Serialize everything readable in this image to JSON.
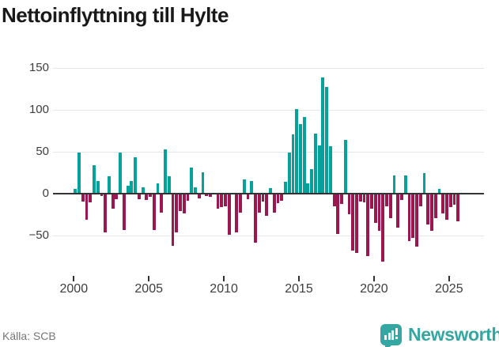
{
  "title": "Nettoinflyttning till Hylte",
  "footer": {
    "source": "Källa: SCB",
    "brand": "Newsworthy"
  },
  "colors": {
    "positive": "#04a29a",
    "negative": "#9a1750",
    "brand": "#35a7a2",
    "grid": "#e6e6e6",
    "axis": "#333333",
    "tick_text": "#3d3d3d",
    "title_text": "#191919",
    "source_text": "#757575"
  },
  "chart_data": {
    "type": "bar",
    "title": "Nettoinflyttning till Hylte",
    "source": "Källa: SCB",
    "xlabel": "",
    "ylabel": "",
    "ylim": [
      -85,
      155
    ],
    "grid": true,
    "legend": "none",
    "y_ticks": [
      {
        "value": 150,
        "label": "150"
      },
      {
        "value": 100,
        "label": "100"
      },
      {
        "value": 50,
        "label": "50"
      },
      {
        "value": 0,
        "label": "0"
      },
      {
        "value": -50,
        "label": "−50"
      }
    ],
    "x_ticks": [
      {
        "year": 2000,
        "label": "2000"
      },
      {
        "year": 2005,
        "label": "2005"
      },
      {
        "year": 2010,
        "label": "2010"
      },
      {
        "year": 2015,
        "label": "2015"
      },
      {
        "year": 2020,
        "label": "2020"
      },
      {
        "year": 2025,
        "label": "2025"
      }
    ],
    "categories": [
      "2000Q1",
      "2000Q2",
      "2000Q3",
      "2000Q4",
      "2001Q1",
      "2001Q2",
      "2001Q3",
      "2001Q4",
      "2002Q1",
      "2002Q2",
      "2002Q3",
      "2002Q4",
      "2003Q1",
      "2003Q2",
      "2003Q3",
      "2003Q4",
      "2004Q1",
      "2004Q2",
      "2004Q3",
      "2004Q4",
      "2005Q1",
      "2005Q2",
      "2005Q3",
      "2005Q4",
      "2006Q1",
      "2006Q2",
      "2006Q3",
      "2006Q4",
      "2007Q1",
      "2007Q2",
      "2007Q3",
      "2007Q4",
      "2008Q1",
      "2008Q2",
      "2008Q3",
      "2008Q4",
      "2009Q1",
      "2009Q2",
      "2009Q3",
      "2009Q4",
      "2010Q1",
      "2010Q2",
      "2010Q3",
      "2010Q4",
      "2011Q1",
      "2011Q2",
      "2011Q3",
      "2011Q4",
      "2012Q1",
      "2012Q2",
      "2012Q3",
      "2012Q4",
      "2013Q1",
      "2013Q2",
      "2013Q3",
      "2013Q4",
      "2014Q1",
      "2014Q2",
      "2014Q3",
      "2014Q4",
      "2015Q1",
      "2015Q2",
      "2015Q3",
      "2015Q4",
      "2016Q1",
      "2016Q2",
      "2016Q3",
      "2016Q4",
      "2017Q1",
      "2017Q2",
      "2017Q3",
      "2017Q4",
      "2018Q1",
      "2018Q2",
      "2018Q3",
      "2018Q4",
      "2019Q1",
      "2019Q2",
      "2019Q3",
      "2019Q4",
      "2020Q1",
      "2020Q2",
      "2020Q3",
      "2020Q4",
      "2021Q1",
      "2021Q2",
      "2021Q3",
      "2021Q4",
      "2022Q1",
      "2022Q2",
      "2022Q3",
      "2022Q4",
      "2023Q1",
      "2023Q2",
      "2023Q3",
      "2023Q4",
      "2024Q1",
      "2024Q2",
      "2024Q3",
      "2024Q4",
      "2025Q1",
      "2025Q2",
      "2025Q3"
    ],
    "values": [
      6,
      49,
      -8,
      -30,
      -9,
      34,
      15,
      -2,
      -45,
      21,
      -17,
      -5,
      49,
      -42,
      10,
      15,
      44,
      -5,
      8,
      -6,
      -3,
      -42,
      13,
      -21,
      53,
      21,
      -61,
      -45,
      -20,
      -22,
      -7,
      31,
      8,
      -4,
      26,
      -2,
      -3,
      0,
      -17,
      -15,
      -14,
      -48,
      0,
      -45,
      -21,
      17,
      -5,
      15,
      -57,
      -21,
      -8,
      -25,
      7,
      -21,
      -10,
      -7,
      14,
      49,
      71,
      101,
      83,
      92,
      13,
      30,
      72,
      58,
      139,
      128,
      57,
      -14,
      -47,
      -11,
      64,
      -23,
      -67,
      -70,
      -8,
      -9,
      -73,
      -17,
      -34,
      -43,
      -80,
      -14,
      -28,
      22,
      -39,
      -6,
      22,
      -55,
      -52,
      -62,
      -14,
      25,
      -36,
      -43,
      -28,
      6,
      -22,
      -30,
      -15,
      -12,
      -32
    ]
  }
}
